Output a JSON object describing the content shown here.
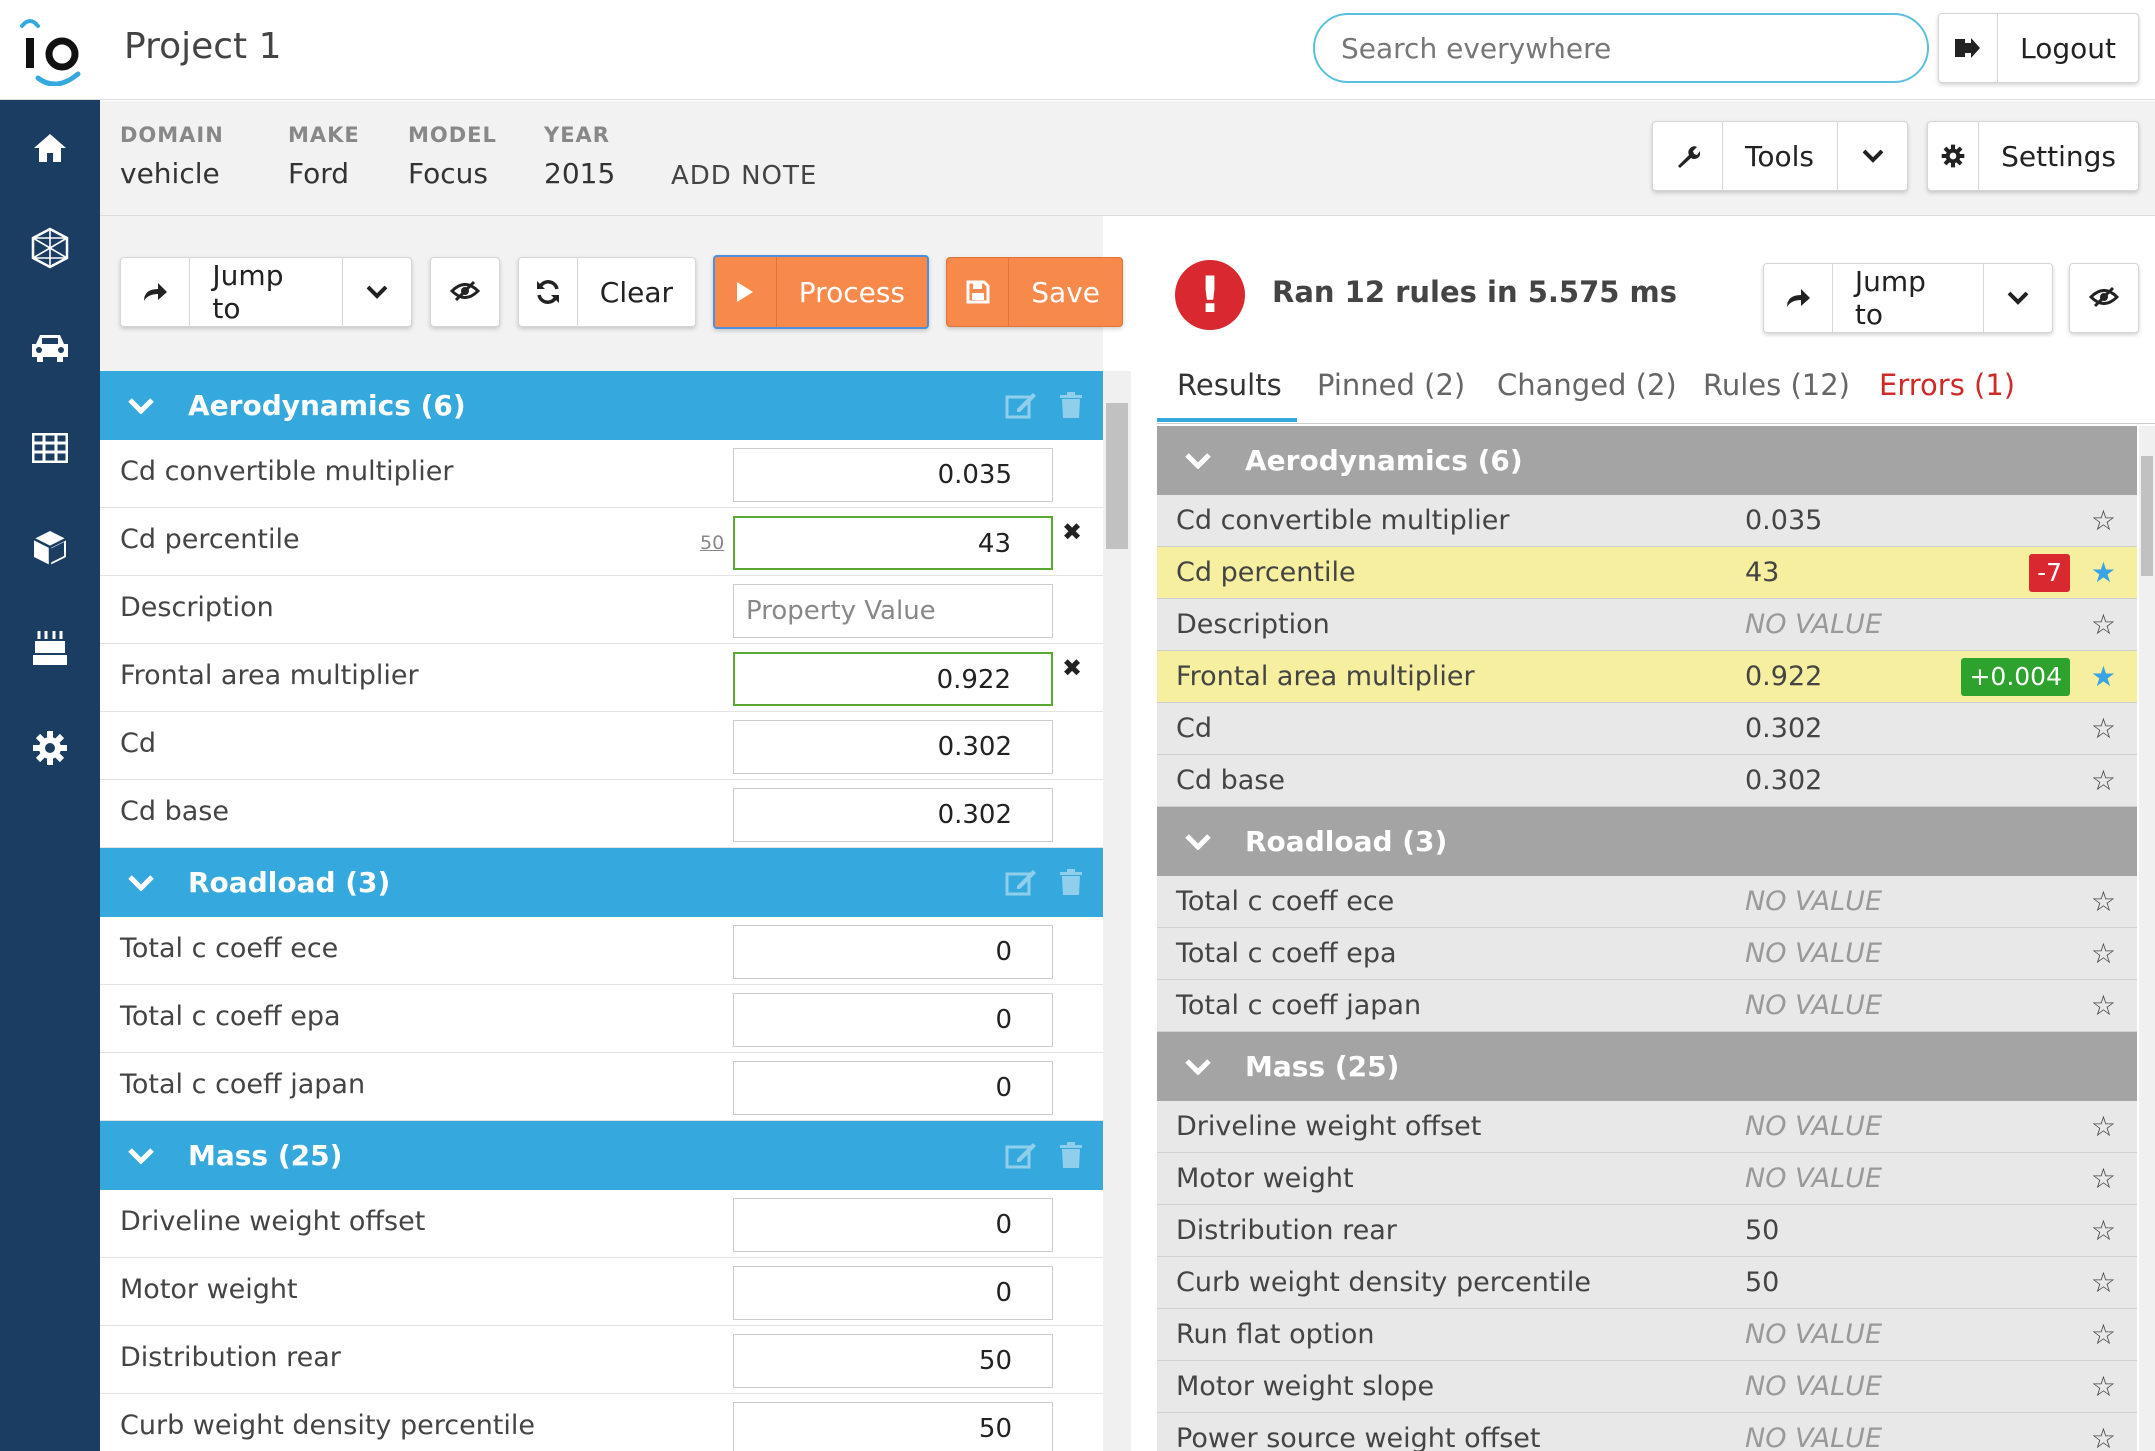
{
  "header": {
    "logo_text": "io",
    "project_title": "Project 1",
    "search_placeholder": "Search everywhere",
    "logout_label": "Logout"
  },
  "sidenav": {
    "icons": [
      "home-icon",
      "network-icon",
      "car-icon",
      "table-icon",
      "cube-icon",
      "birthday-cake-icon",
      "gear-icon"
    ]
  },
  "meta": {
    "items": [
      {
        "key": "DOMAIN",
        "value": "vehicle"
      },
      {
        "key": "MAKE",
        "value": "Ford"
      },
      {
        "key": "MODEL",
        "value": "Focus"
      },
      {
        "key": "YEAR",
        "value": "2015"
      }
    ],
    "add_note": "ADD NOTE",
    "tools_label": "Tools",
    "settings_label": "Settings"
  },
  "left_toolbar": {
    "jump_label": "Jump to",
    "clear_label": "Clear",
    "process_label": "Process",
    "save_label": "Save"
  },
  "left_groups": [
    {
      "title": "Aerodynamics (6)",
      "props": [
        {
          "name": "Cd convertible multiplier",
          "value": "0.035"
        },
        {
          "name": "Cd percentile",
          "value": "43",
          "default": "50",
          "edited": true
        },
        {
          "name": "Description",
          "value": "",
          "placeholder": "Property Value"
        },
        {
          "name": "Frontal area multiplier",
          "value": "0.922",
          "edited": true
        },
        {
          "name": "Cd",
          "value": "0.302"
        },
        {
          "name": "Cd base",
          "value": "0.302"
        }
      ]
    },
    {
      "title": "Roadload (3)",
      "props": [
        {
          "name": "Total c coeff ece",
          "value": "0"
        },
        {
          "name": "Total c coeff epa",
          "value": "0"
        },
        {
          "name": "Total c coeff japan",
          "value": "0"
        }
      ]
    },
    {
      "title": "Mass (25)",
      "props": [
        {
          "name": "Driveline weight offset",
          "value": "0"
        },
        {
          "name": "Motor weight",
          "value": "0"
        },
        {
          "name": "Distribution rear",
          "value": "50"
        },
        {
          "name": "Curb weight density percentile",
          "value": "50"
        }
      ]
    }
  ],
  "results": {
    "status_text": "Ran 12 rules in 5.575 ms",
    "jump_label": "Jump to",
    "tabs": [
      {
        "label": "Results"
      },
      {
        "label": "Pinned (2)"
      },
      {
        "label": "Changed (2)"
      },
      {
        "label": "Rules (12)"
      },
      {
        "label": "Errors (1)"
      }
    ],
    "no_value_text": "NO VALUE",
    "groups": [
      {
        "title": "Aerodynamics (6)",
        "rows": [
          {
            "name": "Cd convertible multiplier",
            "value": "0.035"
          },
          {
            "name": "Cd percentile",
            "value": "43",
            "delta": "-7",
            "pinned": true
          },
          {
            "name": "Description",
            "value": null
          },
          {
            "name": "Frontal area multiplier",
            "value": "0.922",
            "delta": "+0.004",
            "pinned": true
          },
          {
            "name": "Cd",
            "value": "0.302"
          },
          {
            "name": "Cd base",
            "value": "0.302"
          }
        ]
      },
      {
        "title": "Roadload (3)",
        "rows": [
          {
            "name": "Total c coeff ece",
            "value": null
          },
          {
            "name": "Total c coeff epa",
            "value": null
          },
          {
            "name": "Total c coeff japan",
            "value": null
          }
        ]
      },
      {
        "title": "Mass (25)",
        "rows": [
          {
            "name": "Driveline weight offset",
            "value": null
          },
          {
            "name": "Motor weight",
            "value": null
          },
          {
            "name": "Distribution rear",
            "value": "50"
          },
          {
            "name": "Curb weight density percentile",
            "value": "50"
          },
          {
            "name": "Run flat option",
            "value": null
          },
          {
            "name": "Motor weight slope",
            "value": null
          },
          {
            "name": "Power source weight offset",
            "value": null
          }
        ]
      }
    ]
  },
  "colors": {
    "nav_bg": "#1c3d62",
    "group_header": "#35a8dd",
    "result_header": "#a4a4a4",
    "accent_orange": "#f7894a",
    "error_red": "#d9282f",
    "success_green": "#2da32d",
    "highlight_yellow": "#f5ef9f"
  }
}
